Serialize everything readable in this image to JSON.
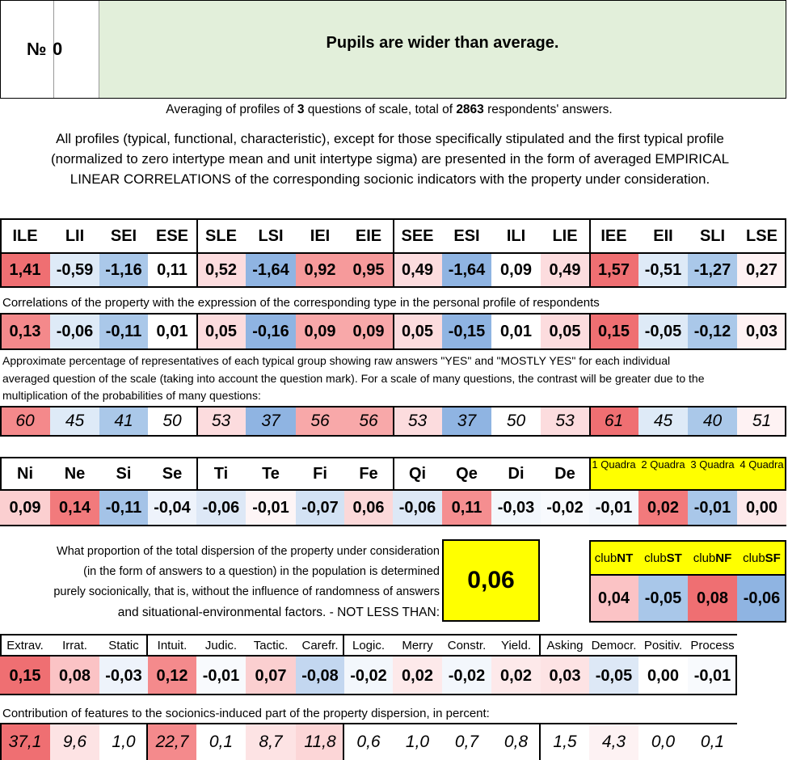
{
  "header": {
    "number_label": "№",
    "number_value": "0",
    "title": "Pupils are wider than average."
  },
  "summary": {
    "prefix": "Averaging of profiles of",
    "questions": "3",
    "middle": "questions of scale, total of",
    "respondents": "2863",
    "suffix": "respondents' answers."
  },
  "description": [
    "All profiles (typical, functional, characteristic), except for those specifically stipulated and the first typical profile",
    "(normalized to zero intertype mean and unit intertype sigma) are presented in the form of averaged EMPIRICAL",
    "LINEAR CORRELATIONS of the corresponding socionic indicators with the property under consideration."
  ],
  "types": {
    "labels": [
      "ILE",
      "LII",
      "SEI",
      "ESE",
      "SLE",
      "LSI",
      "IEI",
      "EIE",
      "SEE",
      "ESI",
      "ILI",
      "LIE",
      "IEE",
      "EII",
      "SLI",
      "LSE"
    ],
    "normalized": [
      "1,41",
      "-0,59",
      "-1,16",
      "0,11",
      "0,52",
      "-1,64",
      "0,92",
      "0,95",
      "0,49",
      "-1,64",
      "0,09",
      "0,49",
      "1,57",
      "-0,51",
      "-1,27",
      "0,27"
    ],
    "normalized_colors": [
      "#ef6f72",
      "#deeaf7",
      "#aac8e9",
      "#ffffff",
      "#fcdcde",
      "#8fb4e2",
      "#f69a9b",
      "#f69a9b",
      "#fcdcde",
      "#8fb4e2",
      "#ffffff",
      "#fcdcde",
      "#ef6f72",
      "#deeaf7",
      "#aac8e9",
      "#fef2f3"
    ],
    "correlations_label": "Correlations of the property with the expression of the corresponding type in the personal profile of respondents",
    "correlations": [
      "0,13",
      "-0,06",
      "-0,11",
      "0,01",
      "0,05",
      "-0,16",
      "0,09",
      "0,09",
      "0,05",
      "-0,15",
      "0,01",
      "0,05",
      "0,15",
      "-0,05",
      "-0,12",
      "0,03"
    ],
    "correlations_colors": [
      "#f4898b",
      "#deeaf7",
      "#aac8e9",
      "#ffffff",
      "#fcdcde",
      "#8fb4e2",
      "#f8a8a9",
      "#f8a8a9",
      "#fcdcde",
      "#8fb4e2",
      "#ffffff",
      "#fcdcde",
      "#ef6f72",
      "#deeaf7",
      "#aac8e9",
      "#fef2f3"
    ],
    "percentage_label": [
      "Approximate percentage of representatives of each typical group showing raw answers \"YES\" and \"MOSTLY YES\" for each individual",
      "averaged question of the scale (taking into account the question mark). For a scale of many questions, the contrast will be greater due to the",
      "multiplication of the probabilities of many questions:"
    ],
    "percentages": [
      "60",
      "45",
      "41",
      "50",
      "53",
      "37",
      "56",
      "56",
      "53",
      "37",
      "50",
      "53",
      "61",
      "45",
      "40",
      "51"
    ],
    "percentages_colors": [
      "#f4898b",
      "#deeaf7",
      "#aac8e9",
      "#ffffff",
      "#fcdcde",
      "#8fb4e2",
      "#f8a8a9",
      "#f8a8a9",
      "#fcdcde",
      "#8fb4e2",
      "#ffffff",
      "#fcdcde",
      "#ef6f72",
      "#deeaf7",
      "#aac8e9",
      "#fef2f3"
    ]
  },
  "functions": {
    "labels": [
      "Ni",
      "Ne",
      "Si",
      "Se",
      "Ti",
      "Te",
      "Fi",
      "Fe",
      "Qi",
      "Qe",
      "Di",
      "De"
    ],
    "values": [
      "0,09",
      "0,14",
      "-0,11",
      "-0,04",
      "-0,06",
      "-0,01",
      "-0,07",
      "0,06",
      "-0,06",
      "0,11",
      "-0,03",
      "-0,02"
    ],
    "colors": [
      "#fbcfd0",
      "#f27a7c",
      "#a4c3e7",
      "#eef3fb",
      "#dde8f6",
      "#fdf5f6",
      "#d3e2f4",
      "#fbd8d9",
      "#dde8f6",
      "#f58e90",
      "#f3f7fc",
      "#f8fafd"
    ]
  },
  "quadras": {
    "labels": [
      "1 Quadra",
      "2 Quadra",
      "3 Quadra",
      "4 Quadra"
    ],
    "values": [
      "-0,01",
      "0,02",
      "-0,01",
      "0,00"
    ],
    "colors": [
      "#f3f7fc",
      "#f27a7c",
      "#a9c7e9",
      "#fde9ea"
    ],
    "header_color": "#ffff00"
  },
  "dispersion": {
    "text": [
      "What proportion of the total dispersion of the property under consideration",
      "(in the form of answers to a question) in the population is determined",
      "purely socionically, that is, without the influence of randomness of answers",
      "and situational-environmental factors. - NOT LESS THAN:"
    ],
    "value": "0,06",
    "box_color": "#ffff00"
  },
  "clubs": {
    "prefix": "club",
    "labels": [
      "NT",
      "ST",
      "NF",
      "SF"
    ],
    "values": [
      "0,04",
      "-0,05",
      "0,08",
      "-0,06"
    ],
    "colors": [
      "#fbc3c5",
      "#a9c7e9",
      "#ef6f72",
      "#8fb4e2"
    ]
  },
  "reinin": {
    "labels": [
      "Extrav.",
      "Irrat.",
      "Static",
      "Intuit.",
      "Judic.",
      "Tactic.",
      "Carefr.",
      "Logic.",
      "Merry",
      "Constr.",
      "Yield.",
      "Asking",
      "Democr.",
      "Positiv.",
      "Process"
    ],
    "values": [
      "0,15",
      "0,08",
      "-0,03",
      "0,12",
      "-0,01",
      "0,07",
      "-0,08",
      "-0,02",
      "0,02",
      "-0,02",
      "0,02",
      "0,03",
      "-0,05",
      "0,00",
      "-0,01"
    ],
    "colors": [
      "#ef6f72",
      "#fbc3c5",
      "#eef3fb",
      "#f48a8c",
      "#f8fafd",
      "#fbcfd0",
      "#c3d7f0",
      "#f3f7fc",
      "#fde9ea",
      "#f3f7fc",
      "#fde9ea",
      "#fde3e4",
      "#dde8f6",
      "#ffffff",
      "#f8fafd"
    ],
    "contribution_label": "Contribution of features to the socionics-induced part of the property dispersion, in percent:",
    "contributions": [
      "37,1",
      "9,6",
      "1,0",
      "22,7",
      "0,1",
      "8,7",
      "11,8",
      "0,6",
      "1,0",
      "0,7",
      "0,8",
      "1,5",
      "4,3",
      "0,0",
      "0,1"
    ],
    "contribution_colors": [
      "#ef6f72",
      "#fde3e4",
      "#ffffff",
      "#f48a8c",
      "#ffffff",
      "#fde3e4",
      "#fcd6d7",
      "#ffffff",
      "#ffffff",
      "#ffffff",
      "#ffffff",
      "#ffffff",
      "#fdf2f3",
      "#ffffff",
      "#ffffff"
    ]
  }
}
